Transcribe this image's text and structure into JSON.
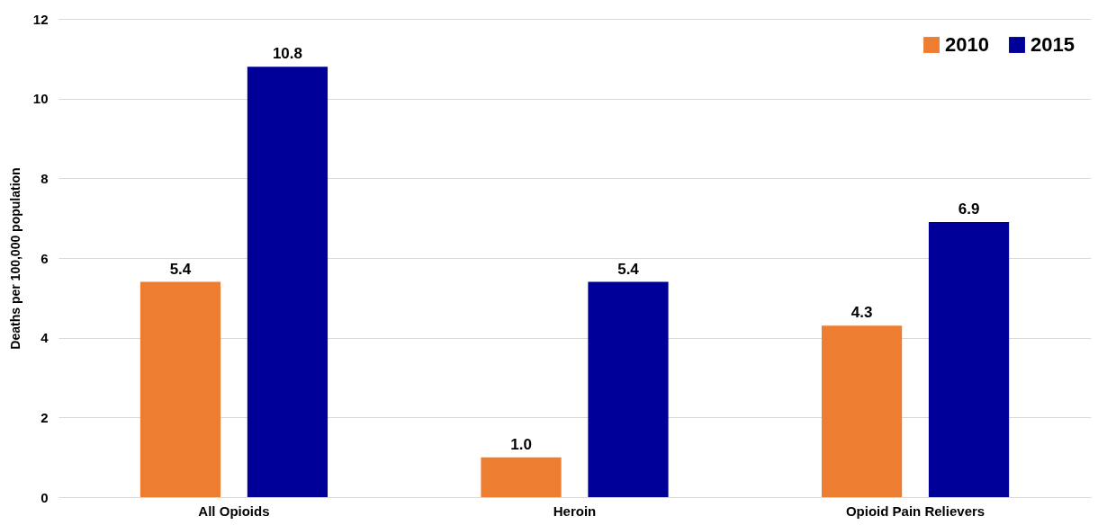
{
  "chart_data": {
    "type": "bar",
    "ylabel": "Deaths per 100,000 population",
    "categories": [
      "All Opioids",
      "Heroin",
      "Opioid Pain Relievers"
    ],
    "series": [
      {
        "name": "2010",
        "color": "#ed7d31",
        "values": [
          5.4,
          1.0,
          4.3
        ],
        "value_labels": [
          "5.4",
          "1.0",
          "4.3"
        ]
      },
      {
        "name": "2015",
        "color": "#000099",
        "values": [
          10.8,
          5.4,
          6.9
        ],
        "value_labels": [
          "10.8",
          "5.4",
          "6.9"
        ]
      }
    ],
    "ylim": [
      0,
      12
    ],
    "yticks": [
      0,
      2,
      4,
      6,
      8,
      10,
      12
    ],
    "grid": "y",
    "legend": "top right"
  }
}
